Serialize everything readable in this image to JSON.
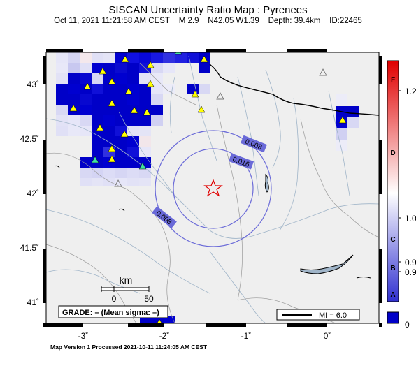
{
  "title": "SISCAN Uncertainty Ratio Map : Pyrenees",
  "subtitle": {
    "date": "Oct 11, 2021 11:21:58 AM CEST",
    "magnitude": "M 2.9",
    "location": "N42.05 W1.39",
    "depth": "Depth: 39.4km",
    "id": "ID:22465"
  },
  "axes": {
    "lat_labels": [
      "43˚",
      "42.5˚",
      "42˚",
      "41.5˚",
      "41˚"
    ],
    "lon_labels": [
      "-3˚",
      "-2˚",
      "-1˚",
      "0˚"
    ]
  },
  "contours": [
    "0.008",
    "0.016",
    "0.008"
  ],
  "scalebar": {
    "unit": "km",
    "ticks": [
      "0",
      "50"
    ]
  },
  "grade_box": "GRADE: – (Mean sigma: –)",
  "mi_legend": "MI = 6.0",
  "colorbar": {
    "letters": [
      "F",
      "D",
      "C",
      "B",
      "A"
    ],
    "values": [
      "1.2",
      "1.0",
      "0.9",
      "0.9",
      "0"
    ],
    "colors": {
      "high": "#e00000",
      "mid": "#ffffff",
      "low": "#0000c8"
    }
  },
  "footer": "Map Version 1 Processed 2021-10-11 11:24:05 AM CEST"
}
